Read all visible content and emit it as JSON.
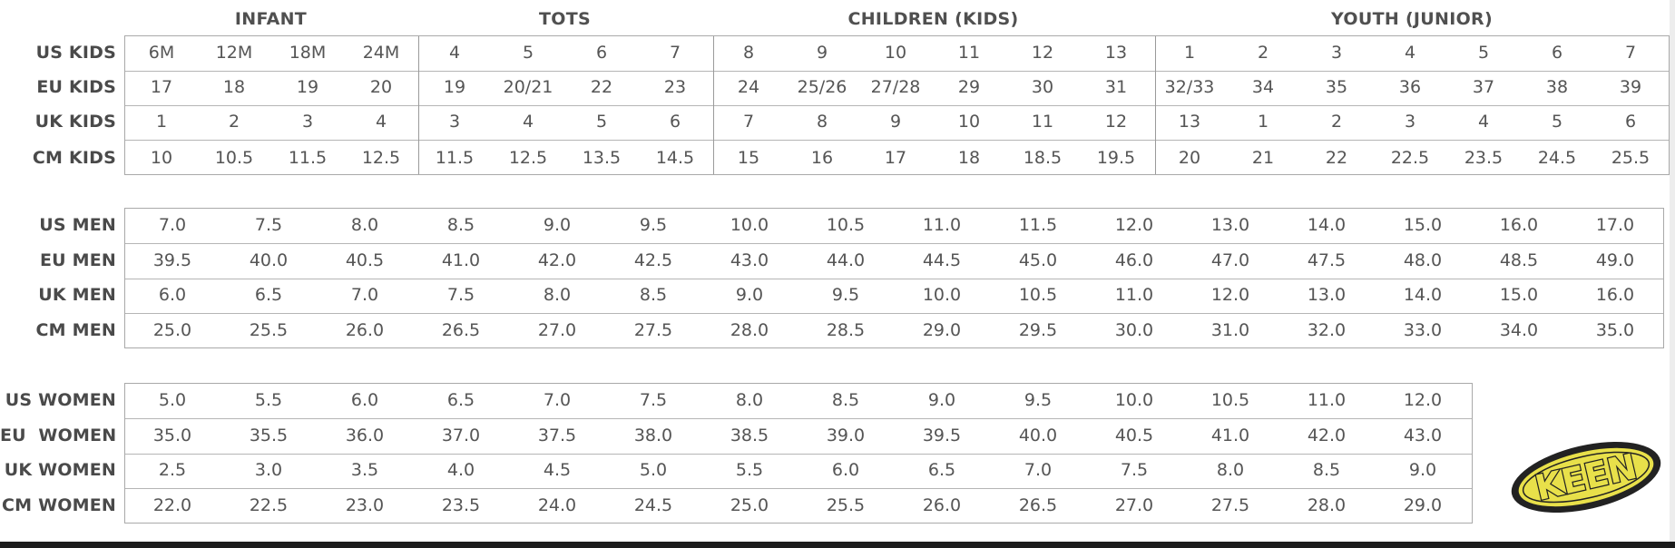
{
  "groups": {
    "infant": "INFANT",
    "tots": "TOTS",
    "children": "CHILDREN (KIDS)",
    "youth": "YOUTH (JUNIOR)"
  },
  "kids": {
    "labels": [
      "US KIDS",
      "EU KIDS",
      "UK KIDS",
      "CM KIDS"
    ],
    "rows": [
      [
        "6M",
        "12M",
        "18M",
        "24M",
        "4",
        "5",
        "6",
        "7",
        "8",
        "9",
        "10",
        "11",
        "12",
        "13",
        "1",
        "2",
        "3",
        "4",
        "5",
        "6",
        "7"
      ],
      [
        "17",
        "18",
        "19",
        "20",
        "19",
        "20/21",
        "22",
        "23",
        "24",
        "25/26",
        "27/28",
        "29",
        "30",
        "31",
        "32/33",
        "34",
        "35",
        "36",
        "37",
        "38",
        "39"
      ],
      [
        "1",
        "2",
        "3",
        "4",
        "3",
        "4",
        "5",
        "6",
        "7",
        "8",
        "9",
        "10",
        "11",
        "12",
        "13",
        "1",
        "2",
        "3",
        "4",
        "5",
        "6"
      ],
      [
        "10",
        "10.5",
        "11.5",
        "12.5",
        "11.5",
        "12.5",
        "13.5",
        "14.5",
        "15",
        "16",
        "17",
        "18",
        "18.5",
        "19.5",
        "20",
        "21",
        "22",
        "22.5",
        "23.5",
        "24.5",
        "25.5"
      ]
    ]
  },
  "men": {
    "labels": [
      "US MEN",
      "EU MEN",
      "UK MEN",
      "CM MEN"
    ],
    "rows": [
      [
        "7.0",
        "7.5",
        "8.0",
        "8.5",
        "9.0",
        "9.5",
        "10.0",
        "10.5",
        "11.0",
        "11.5",
        "12.0",
        "13.0",
        "14.0",
        "15.0",
        "16.0",
        "17.0"
      ],
      [
        "39.5",
        "40.0",
        "40.5",
        "41.0",
        "42.0",
        "42.5",
        "43.0",
        "44.0",
        "44.5",
        "45.0",
        "46.0",
        "47.0",
        "47.5",
        "48.0",
        "48.5",
        "49.0"
      ],
      [
        "6.0",
        "6.5",
        "7.0",
        "7.5",
        "8.0",
        "8.5",
        "9.0",
        "9.5",
        "10.0",
        "10.5",
        "11.0",
        "12.0",
        "13.0",
        "14.0",
        "15.0",
        "16.0"
      ],
      [
        "25.0",
        "25.5",
        "26.0",
        "26.5",
        "27.0",
        "27.5",
        "28.0",
        "28.5",
        "29.0",
        "29.5",
        "30.0",
        "31.0",
        "32.0",
        "33.0",
        "34.0",
        "35.0"
      ]
    ]
  },
  "women": {
    "labels": [
      "US WOMEN",
      "EU  WOMEN",
      "UK WOMEN",
      "CM WOMEN"
    ],
    "rows": [
      [
        "5.0",
        "5.5",
        "6.0",
        "6.5",
        "7.0",
        "7.5",
        "8.0",
        "8.5",
        "9.0",
        "9.5",
        "10.0",
        "10.5",
        "11.0",
        "12.0"
      ],
      [
        "35.0",
        "35.5",
        "36.0",
        "37.0",
        "37.5",
        "38.0",
        "38.5",
        "39.0",
        "39.5",
        "40.0",
        "40.5",
        "41.0",
        "42.0",
        "43.0"
      ],
      [
        "2.5",
        "3.0",
        "3.5",
        "4.0",
        "4.5",
        "5.0",
        "5.5",
        "6.0",
        "6.5",
        "7.0",
        "7.5",
        "8.0",
        "8.5",
        "9.0"
      ],
      [
        "22.0",
        "22.5",
        "23.0",
        "23.5",
        "24.0",
        "24.5",
        "25.0",
        "25.5",
        "26.0",
        "26.5",
        "27.0",
        "27.5",
        "28.0",
        "29.0"
      ]
    ]
  },
  "logo": {
    "text": "KEEN",
    "fill": "#e8e04a",
    "outline": "#222222"
  },
  "colors": {
    "text": "#555555",
    "label": "#4a4a4a",
    "border": "#a9a9a9",
    "bottom_bar": "#1c1c1c"
  }
}
